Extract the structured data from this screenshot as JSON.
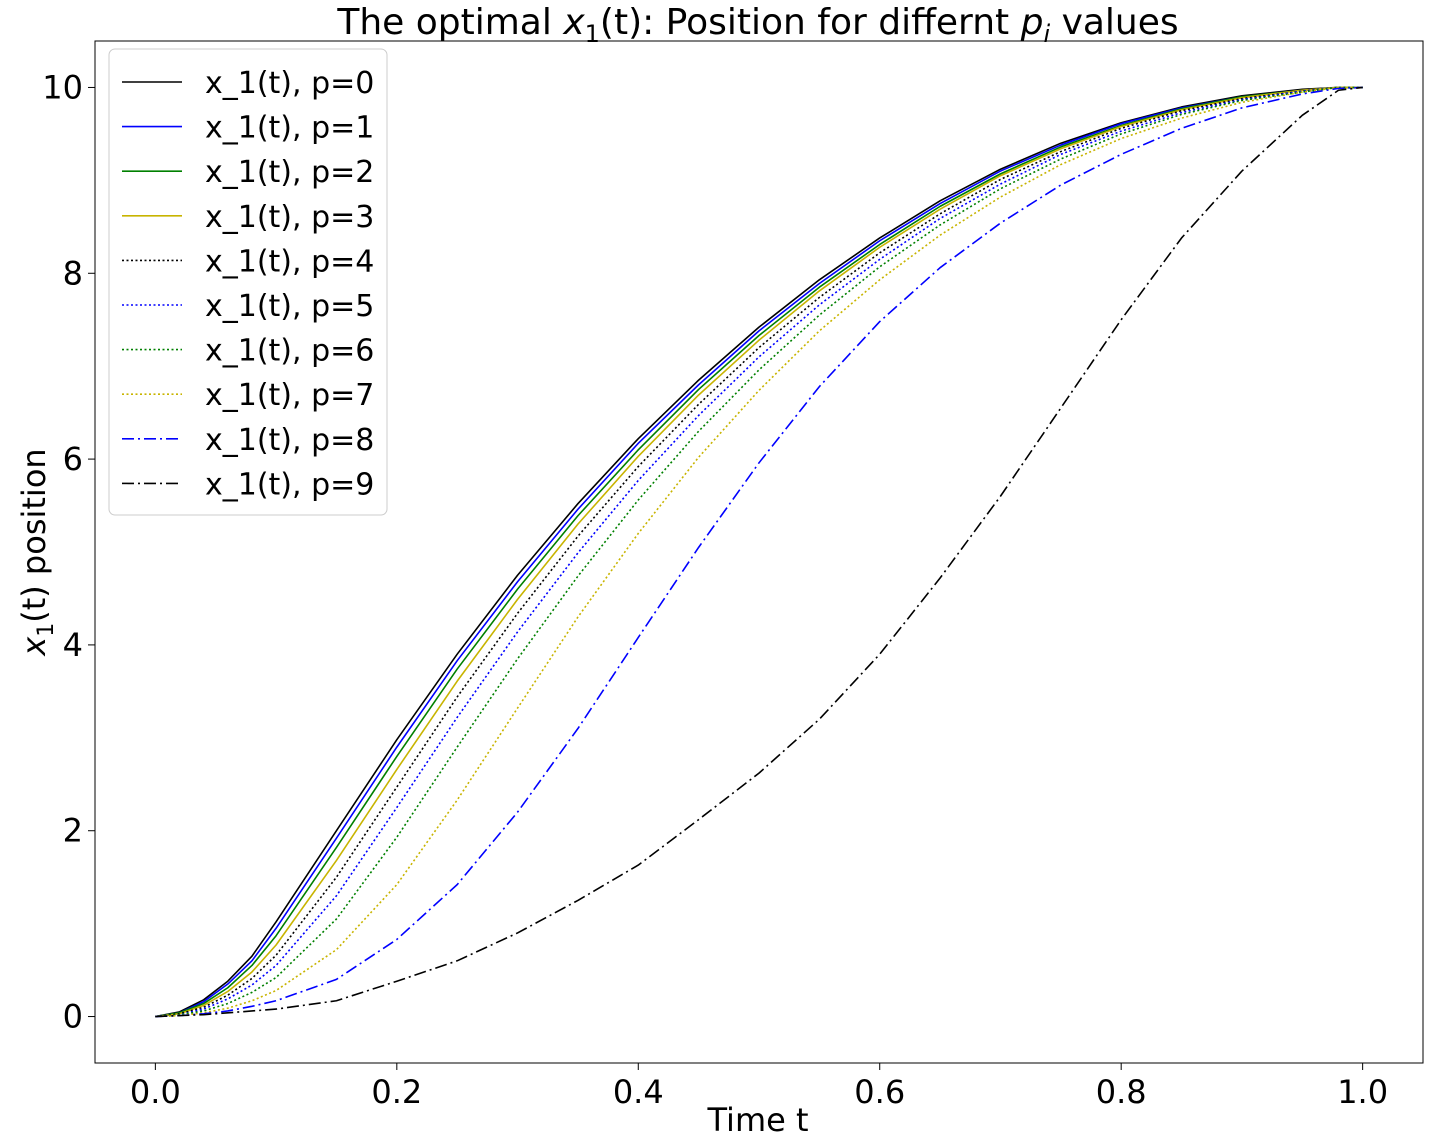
{
  "chart_data": {
    "type": "line",
    "title_main": "The optimal ",
    "title_var": "x",
    "title_sub": "1",
    "title_mid": "(t): Position for differnt ",
    "title_var2": "p",
    "title_sub2": "i",
    "title_end": " values",
    "xlabel": "Time t",
    "ylabel_var": "x",
    "ylabel_sub": "1",
    "ylabel_rest": "(t) position",
    "xlim": [
      -0.05,
      1.05
    ],
    "ylim": [
      -0.5,
      10.5
    ],
    "xticks": [
      "0.0",
      "0.2",
      "0.4",
      "0.6",
      "0.8",
      "1.0"
    ],
    "yticks": [
      "0",
      "2",
      "4",
      "6",
      "8",
      "10"
    ],
    "grid": false,
    "legend_position": "top-left",
    "x": [
      0.0,
      0.02,
      0.04,
      0.06,
      0.08,
      0.1,
      0.15,
      0.2,
      0.25,
      0.3,
      0.35,
      0.4,
      0.45,
      0.5,
      0.55,
      0.6,
      0.65,
      0.7,
      0.75,
      0.8,
      0.85,
      0.9,
      0.95,
      0.98,
      1.0
    ],
    "series": [
      {
        "name": "x_1(t), p=0",
        "color": "#000000",
        "dash": "solid",
        "values": [
          0.0,
          0.05,
          0.18,
          0.38,
          0.65,
          1.02,
          2.0,
          2.98,
          3.9,
          4.75,
          5.52,
          6.22,
          6.85,
          7.42,
          7.93,
          8.38,
          8.78,
          9.12,
          9.4,
          9.62,
          9.79,
          9.91,
          9.98,
          10.0,
          10.0
        ]
      },
      {
        "name": "x_1(t), p=1",
        "color": "#0000ff",
        "dash": "solid",
        "values": [
          0.0,
          0.04,
          0.16,
          0.35,
          0.6,
          0.95,
          1.92,
          2.9,
          3.83,
          4.68,
          5.46,
          6.17,
          6.8,
          7.38,
          7.89,
          8.35,
          8.75,
          9.1,
          9.38,
          9.61,
          9.78,
          9.9,
          9.97,
          10.0,
          10.0
        ]
      },
      {
        "name": "x_1(t), p=2",
        "color": "#008000",
        "dash": "solid",
        "values": [
          0.0,
          0.04,
          0.14,
          0.31,
          0.55,
          0.87,
          1.82,
          2.8,
          3.74,
          4.6,
          5.39,
          6.1,
          6.75,
          7.33,
          7.85,
          8.31,
          8.72,
          9.07,
          9.36,
          9.59,
          9.77,
          9.9,
          9.97,
          10.0,
          10.0
        ]
      },
      {
        "name": "x_1(t), p=3",
        "color": "#c8b400",
        "dash": "solid",
        "values": [
          0.0,
          0.03,
          0.12,
          0.27,
          0.48,
          0.77,
          1.68,
          2.66,
          3.61,
          4.49,
          5.3,
          6.03,
          6.69,
          7.28,
          7.81,
          8.28,
          8.69,
          9.05,
          9.34,
          9.58,
          9.76,
          9.89,
          9.97,
          10.0,
          10.0
        ]
      },
      {
        "name": "x_1(t), p=4",
        "color": "#000000",
        "dash": "dotted",
        "values": [
          0.0,
          0.03,
          0.1,
          0.23,
          0.41,
          0.66,
          1.5,
          2.47,
          3.44,
          4.34,
          5.17,
          5.92,
          6.59,
          7.2,
          7.74,
          8.22,
          8.64,
          9.01,
          9.31,
          9.56,
          9.75,
          9.88,
          9.96,
          10.0,
          10.0
        ]
      },
      {
        "name": "x_1(t), p=5",
        "color": "#0000ff",
        "dash": "dotted",
        "values": [
          0.0,
          0.02,
          0.08,
          0.19,
          0.34,
          0.55,
          1.3,
          2.25,
          3.22,
          4.14,
          4.99,
          5.77,
          6.47,
          7.1,
          7.66,
          8.15,
          8.59,
          8.96,
          9.28,
          9.53,
          9.73,
          9.87,
          9.96,
          10.0,
          10.0
        ]
      },
      {
        "name": "x_1(t), p=6",
        "color": "#008000",
        "dash": "dotted",
        "values": [
          0.0,
          0.02,
          0.06,
          0.14,
          0.26,
          0.42,
          1.05,
          1.93,
          2.9,
          3.85,
          4.74,
          5.56,
          6.3,
          6.96,
          7.55,
          8.07,
          8.52,
          8.91,
          9.23,
          9.5,
          9.71,
          9.86,
          9.95,
          10.0,
          10.0
        ]
      },
      {
        "name": "x_1(t), p=7",
        "color": "#c8b400",
        "dash": "dotted",
        "values": [
          0.0,
          0.01,
          0.04,
          0.09,
          0.17,
          0.28,
          0.72,
          1.42,
          2.33,
          3.32,
          4.3,
          5.2,
          6.02,
          6.74,
          7.38,
          7.93,
          8.41,
          8.82,
          9.17,
          9.45,
          9.67,
          9.84,
          9.95,
          10.0,
          10.0
        ]
      },
      {
        "name": "x_1(t), p=8",
        "color": "#0000ff",
        "dash": "dashdot",
        "values": [
          0.0,
          0.01,
          0.03,
          0.06,
          0.11,
          0.17,
          0.4,
          0.83,
          1.42,
          2.2,
          3.1,
          4.08,
          5.05,
          5.96,
          6.78,
          7.48,
          8.06,
          8.54,
          8.95,
          9.28,
          9.56,
          9.78,
          9.93,
          9.99,
          10.0
        ]
      },
      {
        "name": "x_1(t), p=9",
        "color": "#000000",
        "dash": "dashdot",
        "values": [
          0.0,
          0.01,
          0.02,
          0.04,
          0.06,
          0.08,
          0.17,
          0.38,
          0.6,
          0.9,
          1.25,
          1.63,
          2.12,
          2.62,
          3.2,
          3.9,
          4.72,
          5.6,
          6.55,
          7.5,
          8.38,
          9.1,
          9.7,
          9.97,
          10.0
        ]
      }
    ]
  }
}
